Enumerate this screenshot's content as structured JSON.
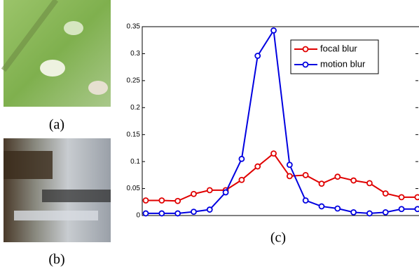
{
  "captions": {
    "a": "(a)",
    "b": "(b)"
  },
  "chart_data": {
    "type": "line",
    "caption": "(c)",
    "x": [
      1,
      2,
      3,
      4,
      5,
      6,
      7,
      8,
      9,
      10,
      11,
      12,
      13,
      14,
      15,
      16,
      17,
      18
    ],
    "series": [
      {
        "name": "focal blur",
        "color": "#e00000",
        "values": [
          0.028,
          0.028,
          0.027,
          0.04,
          0.047,
          0.047,
          0.066,
          0.091,
          0.115,
          0.073,
          0.075,
          0.059,
          0.072,
          0.065,
          0.06,
          0.041,
          0.034,
          0.034
        ]
      },
      {
        "name": "motion blur",
        "color": "#0000e0",
        "values": [
          0.004,
          0.004,
          0.004,
          0.007,
          0.011,
          0.043,
          0.105,
          0.296,
          0.343,
          0.094,
          0.028,
          0.017,
          0.013,
          0.006,
          0.004,
          0.006,
          0.012,
          0.012
        ]
      }
    ],
    "xlim": [
      0.78,
      18.05
    ],
    "ylim": [
      0,
      0.35
    ],
    "yticks": [
      0,
      0.05,
      0.1,
      0.15,
      0.2,
      0.25,
      0.3,
      0.35
    ],
    "legend": "upper right",
    "marker": "circle"
  }
}
